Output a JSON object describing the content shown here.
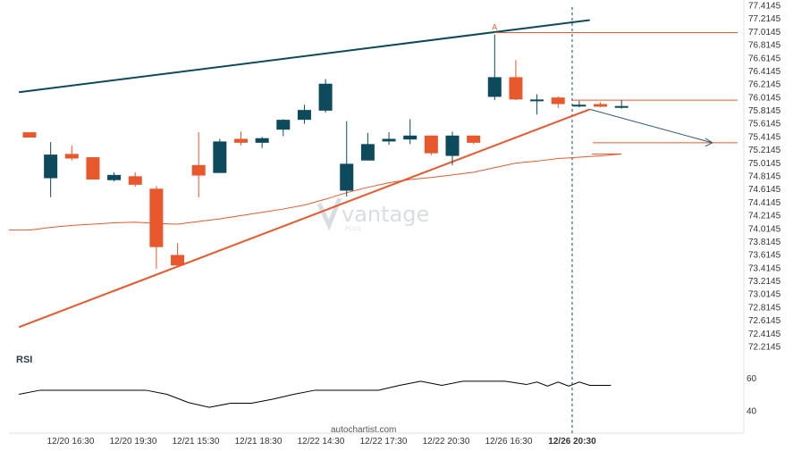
{
  "chart_data": {
    "type": "candlestick",
    "x_labels": [
      "12/20 16:30",
      "12/20 19:30",
      "12/21 15:30",
      "12/21 18:30",
      "12/22 14:30",
      "12/22 17:30",
      "12/22 20:30",
      "12/26 16:30",
      "12/26 20:30"
    ],
    "y_ticks": [
      "77.4145",
      "77.2145",
      "77.0145",
      "76.8145",
      "76.6145",
      "76.4145",
      "76.2145",
      "76.0145",
      "75.8145",
      "75.6145",
      "75.4145",
      "75.2145",
      "75.0145",
      "74.8145",
      "74.6145",
      "74.4145",
      "74.2145",
      "74.0145",
      "73.8145",
      "73.6145",
      "73.4145",
      "73.2145",
      "73.0145",
      "72.8145",
      "72.6145",
      "72.4145",
      "72.2145"
    ],
    "ylim": [
      72.2145,
      77.4145
    ],
    "colors": {
      "up": "#0d4a5c",
      "down": "#e8582c",
      "resistance": "#0d4a5c",
      "support": "#e8582c",
      "ma": "#e8582c",
      "rsi": "#000000"
    },
    "candles": [
      {
        "o": 75.48,
        "h": 75.48,
        "l": 75.4,
        "c": 75.4
      },
      {
        "o": 74.78,
        "h": 75.33,
        "l": 74.49,
        "c": 75.14
      },
      {
        "o": 75.15,
        "h": 75.28,
        "l": 75.05,
        "c": 75.08
      },
      {
        "o": 75.1,
        "h": 75.1,
        "l": 74.76,
        "c": 74.76
      },
      {
        "o": 74.75,
        "h": 74.87,
        "l": 74.73,
        "c": 74.83
      },
      {
        "o": 74.81,
        "h": 74.87,
        "l": 74.65,
        "c": 74.68
      },
      {
        "o": 74.62,
        "h": 74.66,
        "l": 73.4,
        "c": 73.73
      },
      {
        "o": 73.61,
        "h": 73.79,
        "l": 73.43,
        "c": 73.45
      },
      {
        "o": 74.98,
        "h": 75.48,
        "l": 74.49,
        "c": 74.82
      },
      {
        "o": 74.86,
        "h": 75.38,
        "l": 74.86,
        "c": 75.34
      },
      {
        "o": 75.38,
        "h": 75.49,
        "l": 75.28,
        "c": 75.32
      },
      {
        "o": 75.32,
        "h": 75.41,
        "l": 75.24,
        "c": 75.39
      },
      {
        "o": 75.52,
        "h": 75.68,
        "l": 75.42,
        "c": 75.67
      },
      {
        "o": 75.67,
        "h": 75.9,
        "l": 75.61,
        "c": 75.82
      },
      {
        "o": 75.81,
        "h": 76.29,
        "l": 75.78,
        "c": 76.22
      },
      {
        "o": 74.59,
        "h": 75.65,
        "l": 74.5,
        "c": 75.0
      },
      {
        "o": 75.05,
        "h": 75.47,
        "l": 75.05,
        "c": 75.3
      },
      {
        "o": 75.34,
        "h": 75.48,
        "l": 75.29,
        "c": 75.38
      },
      {
        "o": 75.37,
        "h": 75.68,
        "l": 75.3,
        "c": 75.43
      },
      {
        "o": 75.43,
        "h": 75.43,
        "l": 75.13,
        "c": 75.16
      },
      {
        "o": 75.12,
        "h": 75.49,
        "l": 74.98,
        "c": 75.43
      },
      {
        "o": 75.43,
        "h": 75.43,
        "l": 75.3,
        "c": 75.32
      },
      {
        "o": 76.02,
        "h": 76.97,
        "l": 75.97,
        "c": 76.32
      },
      {
        "o": 76.32,
        "h": 76.58,
        "l": 75.97,
        "c": 75.98
      },
      {
        "o": 75.96,
        "h": 76.06,
        "l": 75.75,
        "c": 75.98
      },
      {
        "o": 76.01,
        "h": 76.03,
        "l": 75.85,
        "c": 75.91
      },
      {
        "o": 75.89,
        "h": 75.96,
        "l": 75.86,
        "c": 75.9
      },
      {
        "o": 75.91,
        "h": 75.94,
        "l": 75.86,
        "c": 75.87
      },
      {
        "o": 75.87,
        "h": 75.97,
        "l": 75.84,
        "c": 75.88
      }
    ],
    "resistance_line": [
      {
        "i": -0.5,
        "y": 76.09
      },
      {
        "i": 26.5,
        "y": 77.19
      }
    ],
    "support_line": [
      {
        "i": -0.5,
        "y": 72.51
      },
      {
        "i": 26.5,
        "y": 75.83
      }
    ],
    "horizontal_levels": [
      77.0,
      75.97,
      75.32
    ],
    "projection_arrow": [
      {
        "i": 26.5,
        "y": 75.83
      },
      {
        "i": 32.3,
        "y": 75.32
      }
    ],
    "pattern_point_label": "A",
    "moving_average": [
      73.99,
      74.03,
      74.06,
      74.08,
      74.1,
      74.11,
      74.09,
      74.08,
      74.12,
      74.16,
      74.21,
      74.26,
      74.31,
      74.37,
      74.46,
      74.56,
      74.64,
      74.71,
      74.76,
      74.79,
      74.83,
      74.87,
      74.94,
      75.01,
      75.04,
      75.08,
      75.1,
      75.12,
      75.15
    ],
    "rsi_label": "RSI",
    "rsi_ticks": [
      "60",
      "40"
    ],
    "rsi_ylim": [
      30,
      70
    ],
    "rsi_values": [
      50,
      52.5,
      52.5,
      52.5,
      52.5,
      50,
      45,
      42,
      44.5,
      44.5,
      47,
      50,
      52.5,
      52.5,
      52.5,
      52.5,
      55.5,
      58,
      55.5,
      58,
      58,
      58,
      56,
      57.5,
      55,
      57.5,
      55,
      57.5,
      55.5,
      55.5
    ],
    "rsi_x_indices": [
      -0.5,
      0.5,
      3.5,
      4.5,
      5.5,
      6.5,
      7.5,
      8.5,
      9.5,
      10.5,
      11.5,
      12.5,
      13.5,
      14.5,
      15.5,
      16.5,
      17.5,
      18.5,
      19.5,
      20.5,
      21.5,
      22.5,
      23.5,
      24,
      24.5,
      25,
      25.5,
      26,
      26.5,
      27.5
    ]
  },
  "footer_text": "autochartist.com",
  "watermark": "vantage"
}
